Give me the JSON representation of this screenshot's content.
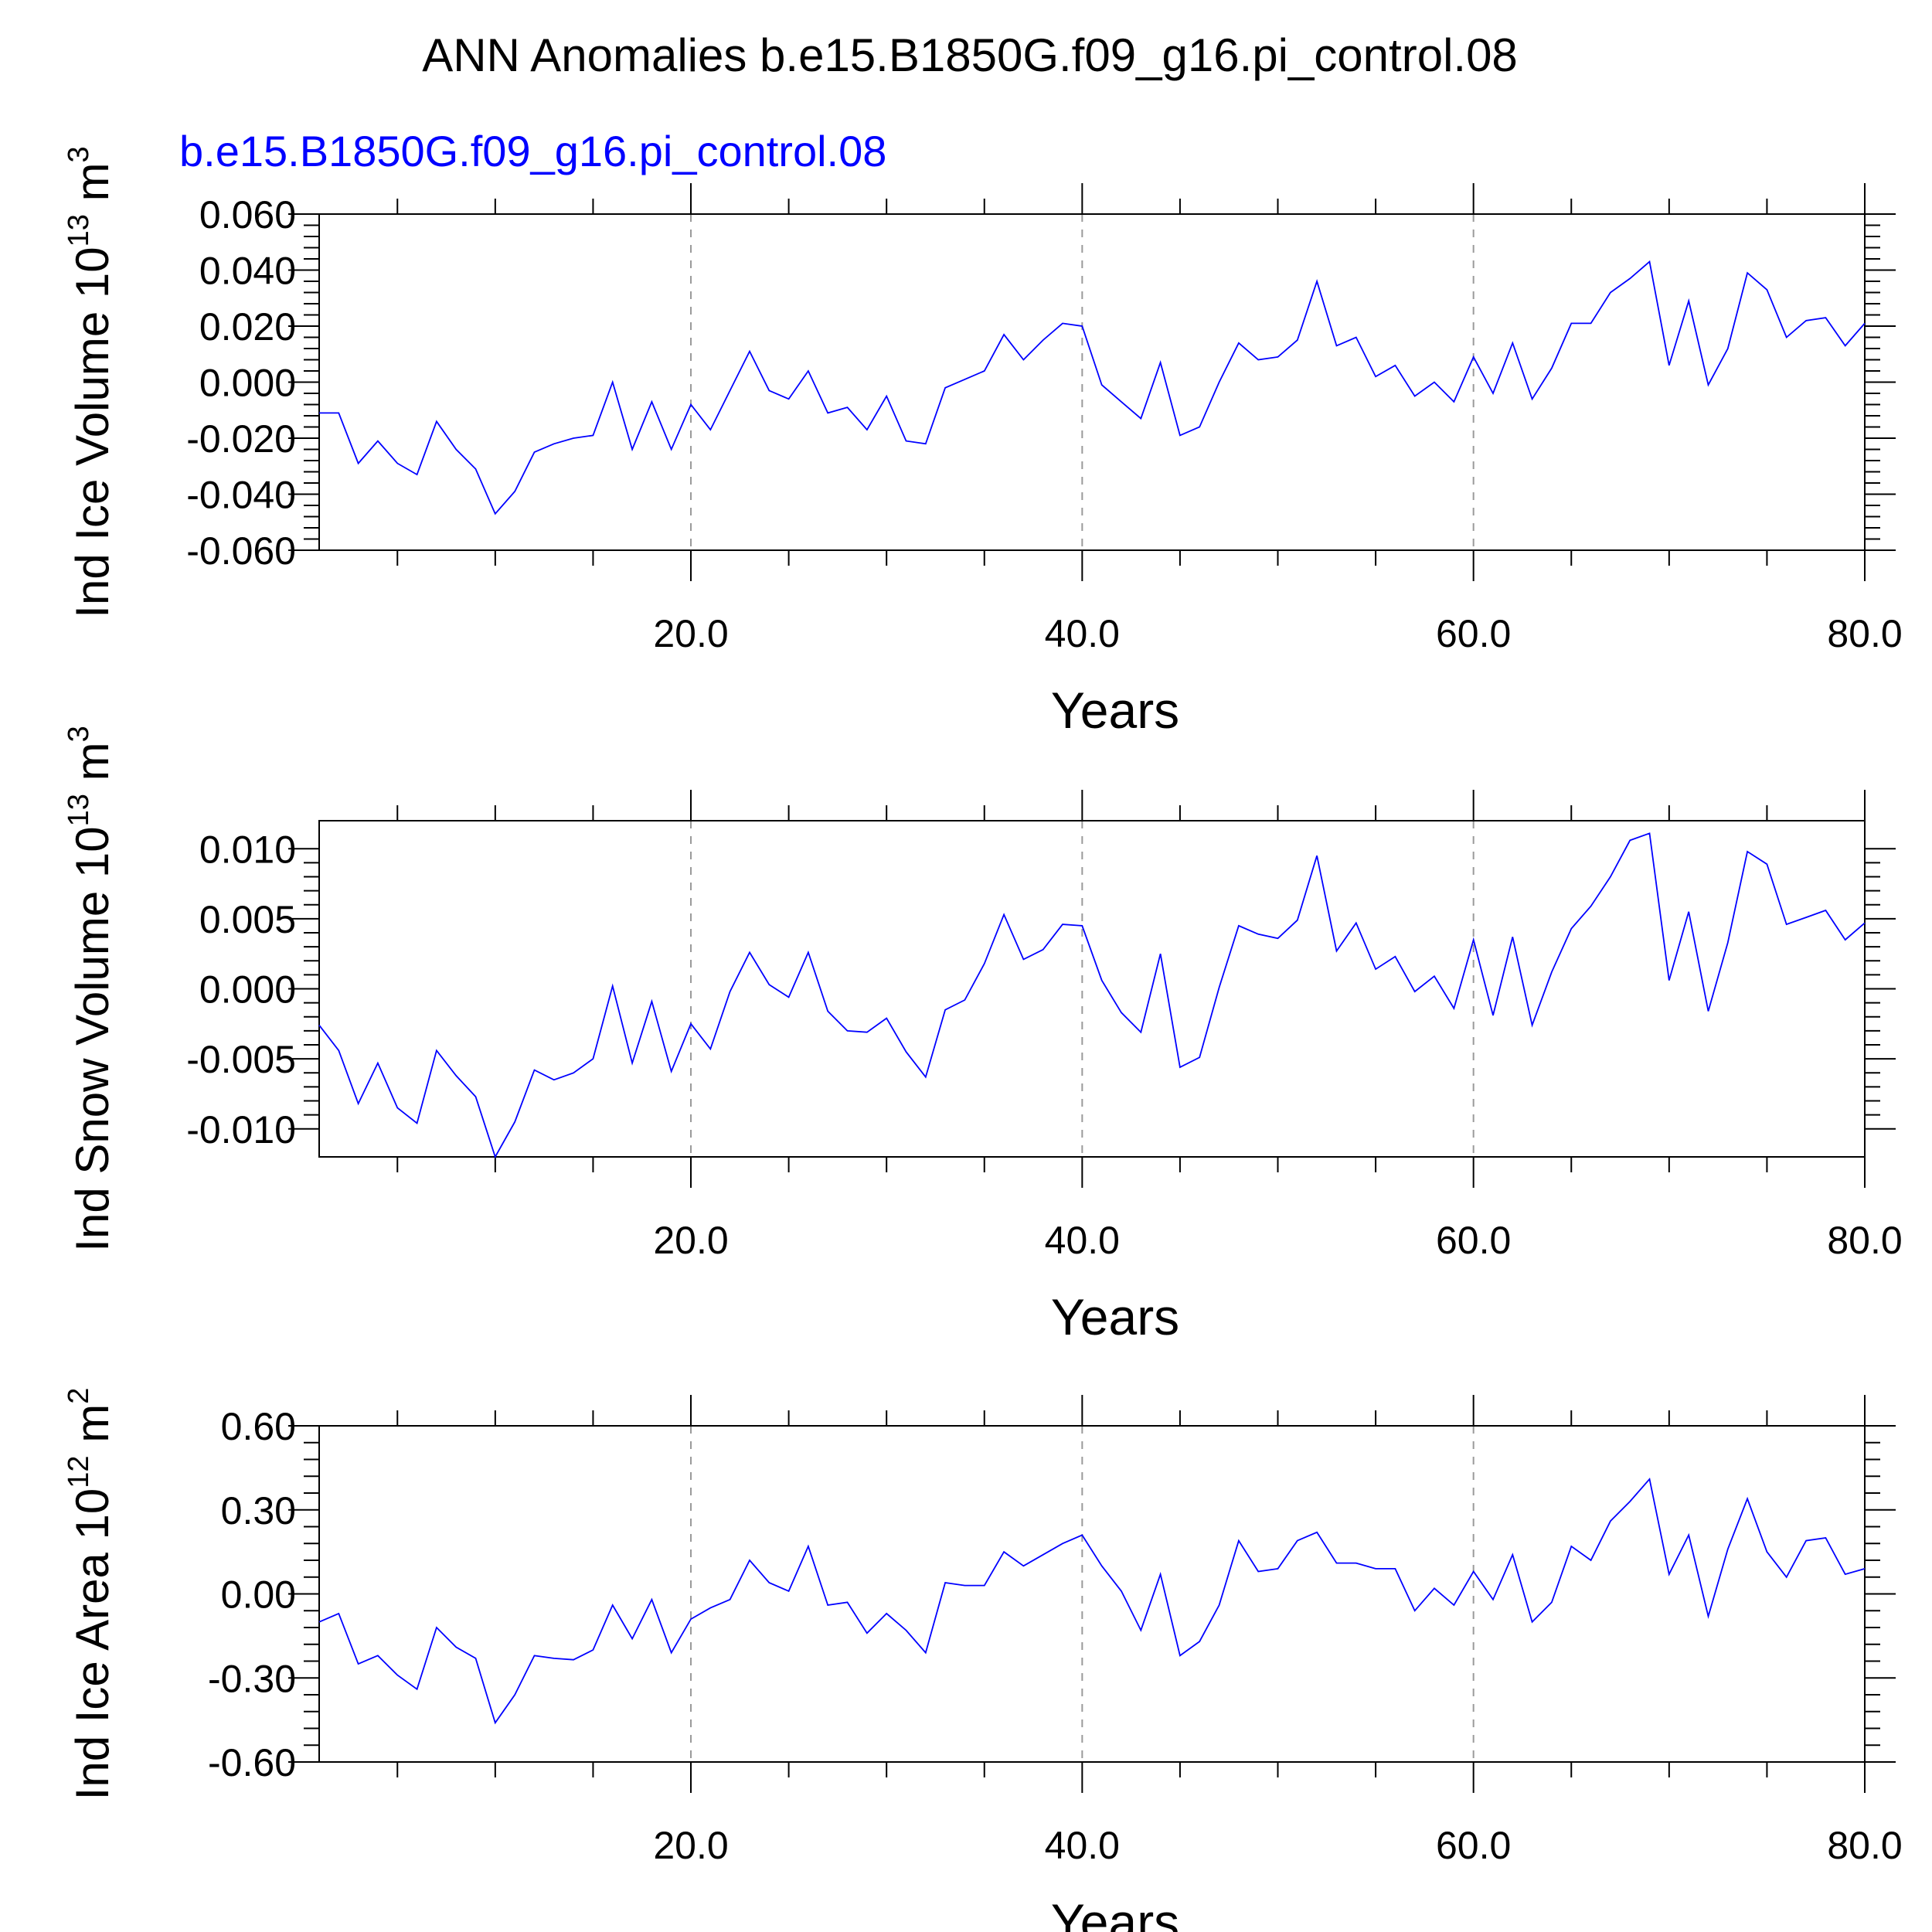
{
  "title": "ANN Anomalies b.e15.B1850G.f09_g16.pi_control.08",
  "subtitle": "b.e15.B1850G.f09_g16.pi_control.08",
  "colors": {
    "series": "#0000ff",
    "subtitle": "#0000ff",
    "grid": "#9a9a9a"
  },
  "chart_data": [
    {
      "type": "line",
      "ylabel": "Ind Ice Volume 10",
      "ylabel_sup": "13",
      "ylabel_unit": " m",
      "ylabel_unit_sup": "3",
      "xlabel": "Years",
      "xlim": [
        1,
        80
      ],
      "ylim": [
        -0.06,
        0.06
      ],
      "xticks": [
        20,
        40,
        60,
        80
      ],
      "xtick_labels": [
        "20.0",
        "40.0",
        "60.0",
        "80.0"
      ],
      "yticks": [
        -0.06,
        -0.04,
        -0.02,
        0.0,
        0.02,
        0.04,
        0.06
      ],
      "ytick_labels": [
        "-0.060",
        "-0.040",
        "-0.020",
        "0.000",
        "0.020",
        "0.040",
        "0.060"
      ],
      "grid": "vertical dashed at 20, 40, 60",
      "x": [
        1,
        2,
        3,
        4,
        5,
        6,
        7,
        8,
        9,
        10,
        11,
        12,
        13,
        14,
        15,
        16,
        17,
        18,
        19,
        20,
        21,
        22,
        23,
        24,
        25,
        26,
        27,
        28,
        29,
        30,
        31,
        32,
        33,
        34,
        35,
        36,
        37,
        38,
        39,
        40,
        41,
        42,
        43,
        44,
        45,
        46,
        47,
        48,
        49,
        50,
        51,
        52,
        53,
        54,
        55,
        56,
        57,
        58,
        59,
        60,
        61,
        62,
        63,
        64,
        65,
        66,
        67,
        68,
        69,
        70,
        71,
        72,
        73,
        74,
        75,
        76,
        77,
        78,
        79,
        80
      ],
      "series": [
        {
          "values": [
            -0.011,
            -0.011,
            -0.029,
            -0.021,
            -0.029,
            -0.033,
            -0.014,
            -0.024,
            -0.031,
            -0.047,
            -0.039,
            -0.025,
            -0.022,
            -0.02,
            -0.019,
            0.0,
            -0.024,
            -0.007,
            -0.024,
            -0.008,
            -0.017,
            -0.003,
            0.011,
            -0.003,
            -0.006,
            0.004,
            -0.011,
            -0.009,
            -0.017,
            -0.005,
            -0.021,
            -0.022,
            -0.002,
            0.001,
            0.004,
            0.017,
            0.008,
            0.015,
            0.021,
            0.02,
            -0.001,
            -0.007,
            -0.013,
            0.007,
            -0.019,
            -0.016,
            0.0,
            0.014,
            0.008,
            0.009,
            0.015,
            0.036,
            0.013,
            0.016,
            0.002,
            0.006,
            -0.005,
            0.0,
            -0.007,
            0.009,
            -0.004,
            0.014,
            -0.006,
            0.005,
            0.021,
            0.021,
            0.032,
            0.037,
            0.043,
            0.006,
            0.029,
            -0.001,
            0.012,
            0.039,
            0.033,
            0.016,
            0.022,
            0.023,
            0.013,
            0.021
          ]
        }
      ]
    },
    {
      "type": "line",
      "ylabel": "Ind Snow Volume 10",
      "ylabel_sup": "13",
      "ylabel_unit": " m",
      "ylabel_unit_sup": "3",
      "xlabel": "Years",
      "xlim": [
        1,
        80
      ],
      "ylim": [
        -0.012,
        0.012
      ],
      "xticks": [
        20,
        40,
        60,
        80
      ],
      "xtick_labels": [
        "20.0",
        "40.0",
        "60.0",
        "80.0"
      ],
      "yticks": [
        -0.01,
        -0.005,
        0.0,
        0.005,
        0.01
      ],
      "ytick_labels": [
        "-0.010",
        "-0.005",
        "0.000",
        "0.005",
        "0.010"
      ],
      "grid": "vertical dashed at 20, 40, 60",
      "x": [
        1,
        2,
        3,
        4,
        5,
        6,
        7,
        8,
        9,
        10,
        11,
        12,
        13,
        14,
        15,
        16,
        17,
        18,
        19,
        20,
        21,
        22,
        23,
        24,
        25,
        26,
        27,
        28,
        29,
        30,
        31,
        32,
        33,
        34,
        35,
        36,
        37,
        38,
        39,
        40,
        41,
        42,
        43,
        44,
        45,
        46,
        47,
        48,
        49,
        50,
        51,
        52,
        53,
        54,
        55,
        56,
        57,
        58,
        59,
        60,
        61,
        62,
        63,
        64,
        65,
        66,
        67,
        68,
        69,
        70,
        71,
        72,
        73,
        74,
        75,
        76,
        77,
        78,
        79,
        80
      ],
      "series": [
        {
          "values": [
            -0.0026,
            -0.0044,
            -0.0082,
            -0.0053,
            -0.0085,
            -0.0096,
            -0.0044,
            -0.0062,
            -0.0077,
            -0.012,
            -0.0095,
            -0.0058,
            -0.0065,
            -0.006,
            -0.005,
            0.0002,
            -0.0053,
            -0.0009,
            -0.0059,
            -0.0025,
            -0.0043,
            -0.0002,
            0.0026,
            0.0003,
            -0.0006,
            0.0026,
            -0.0016,
            -0.003,
            -0.0031,
            -0.0021,
            -0.0045,
            -0.0063,
            -0.0015,
            -0.0008,
            0.0018,
            0.0053,
            0.0021,
            0.0028,
            0.0046,
            0.0045,
            0.0006,
            -0.0017,
            -0.0031,
            0.0025,
            -0.0056,
            -0.0049,
            0.0001,
            0.0045,
            0.0039,
            0.0036,
            0.0049,
            0.0095,
            0.0027,
            0.0047,
            0.0014,
            0.0023,
            -0.0002,
            0.0009,
            -0.0014,
            0.0035,
            -0.0019,
            0.0037,
            -0.0026,
            0.0012,
            0.0043,
            0.0059,
            0.008,
            0.0106,
            0.0111,
            0.0006,
            0.0055,
            -0.0016,
            0.0033,
            0.0098,
            0.0089,
            0.0046,
            0.0051,
            0.0056,
            0.0035,
            0.0047
          ]
        }
      ]
    },
    {
      "type": "line",
      "ylabel": "Ind Ice Area 10",
      "ylabel_sup": "12",
      "ylabel_unit": " m",
      "ylabel_unit_sup": "2",
      "xlabel": "Years",
      "xlim": [
        1,
        80
      ],
      "ylim": [
        -0.6,
        0.6
      ],
      "xticks": [
        20,
        40,
        60,
        80
      ],
      "xtick_labels": [
        "20.0",
        "40.0",
        "60.0",
        "80.0"
      ],
      "yticks": [
        -0.6,
        -0.3,
        0.0,
        0.3,
        0.6
      ],
      "ytick_labels": [
        "-0.60",
        "-0.30",
        "0.00",
        "0.30",
        "0.60"
      ],
      "grid": "vertical dashed at 20, 40, 60",
      "x": [
        1,
        2,
        3,
        4,
        5,
        6,
        7,
        8,
        9,
        10,
        11,
        12,
        13,
        14,
        15,
        16,
        17,
        18,
        19,
        20,
        21,
        22,
        23,
        24,
        25,
        26,
        27,
        28,
        29,
        30,
        31,
        32,
        33,
        34,
        35,
        36,
        37,
        38,
        39,
        40,
        41,
        42,
        43,
        44,
        45,
        46,
        47,
        48,
        49,
        50,
        51,
        52,
        53,
        54,
        55,
        56,
        57,
        58,
        59,
        60,
        61,
        62,
        63,
        64,
        65,
        66,
        67,
        68,
        69,
        70,
        71,
        72,
        73,
        74,
        75,
        76,
        77,
        78,
        79,
        80
      ],
      "series": [
        {
          "values": [
            -0.1,
            -0.07,
            -0.25,
            -0.22,
            -0.29,
            -0.34,
            -0.12,
            -0.19,
            -0.23,
            -0.46,
            -0.36,
            -0.22,
            -0.23,
            -0.235,
            -0.2,
            -0.04,
            -0.16,
            -0.02,
            -0.21,
            -0.09,
            -0.05,
            -0.02,
            0.12,
            0.04,
            0.01,
            0.17,
            -0.04,
            -0.03,
            -0.14,
            -0.07,
            -0.13,
            -0.21,
            0.04,
            0.03,
            0.03,
            0.15,
            0.1,
            0.14,
            0.18,
            0.21,
            0.1,
            0.01,
            -0.13,
            0.07,
            -0.22,
            -0.17,
            -0.04,
            0.19,
            0.08,
            0.09,
            0.19,
            0.22,
            0.11,
            0.11,
            0.09,
            0.09,
            -0.06,
            0.02,
            -0.04,
            0.08,
            -0.02,
            0.14,
            -0.1,
            -0.03,
            0.17,
            0.12,
            0.26,
            0.33,
            0.41,
            0.07,
            0.21,
            -0.08,
            0.16,
            0.34,
            0.15,
            0.06,
            0.19,
            0.2,
            0.07,
            0.09
          ]
        }
      ]
    }
  ]
}
